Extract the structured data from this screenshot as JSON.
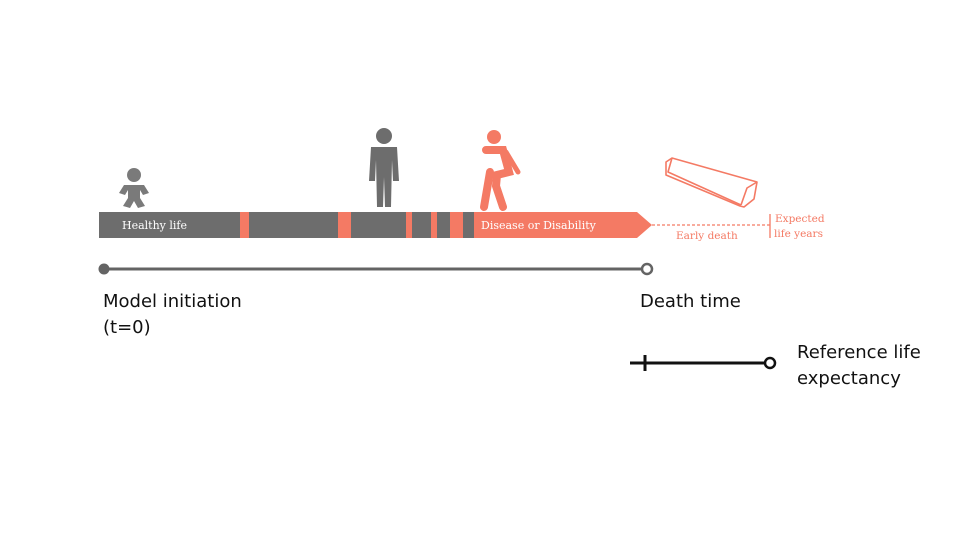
{
  "timeline": {
    "healthy_label": "Healthy life",
    "disease_label": "Disease or Disability",
    "early_death_label": "Early death",
    "expected_label_line1": "Expected",
    "expected_label_line2": "life years"
  },
  "axis": {
    "start_label_line1": "Model initiation",
    "start_label_line2": "(t=0)",
    "end_label": "Death time"
  },
  "legend": {
    "label_line1": "Reference life",
    "label_line2": "expectancy"
  },
  "icons": {
    "baby": "baby-icon",
    "adult": "adult-person-icon",
    "injured": "injured-person-icon",
    "coffin": "coffin-icon"
  },
  "colors": {
    "healthy": "#6d6d6d",
    "disease": "#f47a64",
    "axis": "#646464",
    "legend": "#111111"
  }
}
